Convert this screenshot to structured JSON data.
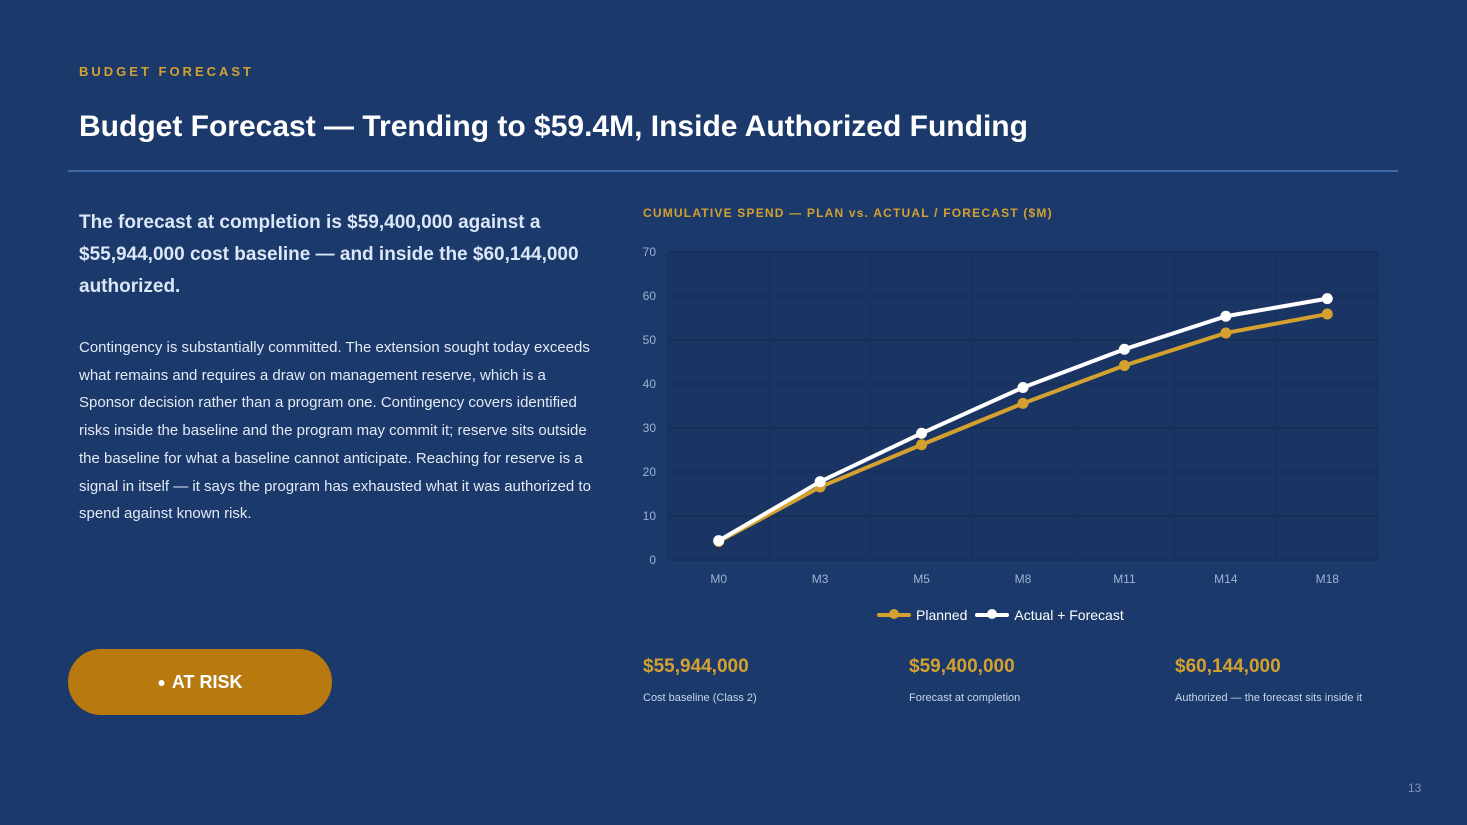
{
  "header": {
    "eyebrow": "BUDGET FORECAST",
    "title": "Budget Forecast — Trending to $59.4M, Inside Authorized Funding"
  },
  "content": {
    "lead": "The forecast at completion is $59,400,000 against a $55,944,000 cost baseline — and inside the $60,144,000 authorized.",
    "body": "Contingency is substantially committed. The extension sought today exceeds what remains and requires a draw on management reserve, which is a Sponsor decision rather than a program one. Contingency covers identified risks inside the baseline and the program may commit it; reserve sits outside the baseline for what a baseline cannot anticipate. Reaching for reserve is a signal in itself — it says the program has exhausted what it was authorized to spend against known risk."
  },
  "status": {
    "dot": "●",
    "label": "AT RISK",
    "color": "#b8790f"
  },
  "chart_data": {
    "type": "line",
    "title": "CUMULATIVE SPEND — PLAN vs. ACTUAL / FORECAST ($M)",
    "categories": [
      "M0",
      "M3",
      "M5",
      "M8",
      "M11",
      "M14",
      "M18"
    ],
    "series": [
      {
        "name": "Planned",
        "color": "#d4a12f",
        "values": [
          4.2,
          16.6,
          26.2,
          35.6,
          44.2,
          51.6,
          55.9
        ]
      },
      {
        "name": "Actual + Forecast",
        "color": "#ffffff",
        "values": [
          4.4,
          17.8,
          28.8,
          39.2,
          47.9,
          55.4,
          59.4
        ]
      }
    ],
    "xlabel": "",
    "ylabel": "",
    "ylim": [
      0,
      70
    ],
    "yticks": [
      0,
      10,
      20,
      30,
      40,
      50,
      60,
      70
    ],
    "grid": true,
    "legend": "bottom"
  },
  "stats": [
    {
      "value": "$55,944,000",
      "label": "Cost baseline (Class 2)"
    },
    {
      "value": "$59,400,000",
      "label": "Forecast at completion"
    },
    {
      "value": "$60,144,000",
      "label": "Authorized — the forecast sits inside it"
    }
  ],
  "footer": {
    "page_number": "13"
  }
}
